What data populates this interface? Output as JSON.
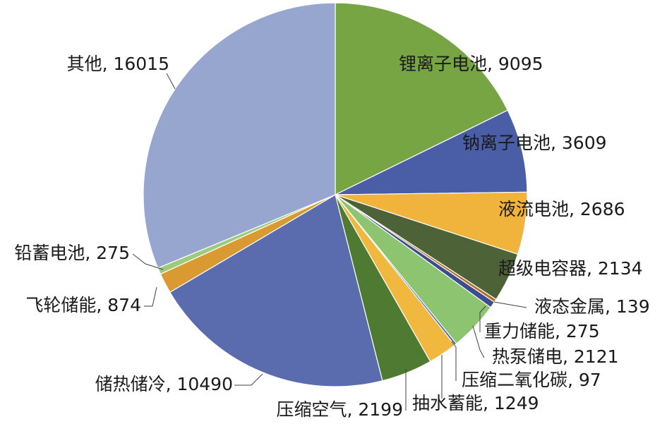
{
  "chart_data": {
    "type": "pie",
    "title": "",
    "slices": [
      {
        "label": "锂离子电池",
        "value": 9095,
        "color": "#77a544",
        "text": "锂离子电池, 9095"
      },
      {
        "label": "钠离子电池",
        "value": 3609,
        "color": "#4a5ea7",
        "text": "钠离子电池, 3609"
      },
      {
        "label": "液流电池",
        "value": 2686,
        "color": "#f0b33c",
        "text": "液流电池, 2686"
      },
      {
        "label": "超级电容器",
        "value": 2134,
        "color": "#4d6236",
        "text": "超级电容器, 2134"
      },
      {
        "label": "液态金属",
        "value": 139,
        "color": "#b36d29",
        "text": "液态金属, 139"
      },
      {
        "label": "重力储能",
        "value": 275,
        "color": "#3b4f8c",
        "text": "重力储能, 275"
      },
      {
        "label": "热泵储电",
        "value": 2121,
        "color": "#8cc46f",
        "text": "热泵储电, 2121"
      },
      {
        "label": "压缩二氧化碳",
        "value": 97,
        "color": "#4a5ea7",
        "text": "压缩二氧化碳, 97"
      },
      {
        "label": "抽水蓄能",
        "value": 1249,
        "color": "#f1b840",
        "text": "抽水蓄能, 1249"
      },
      {
        "label": "压缩空气",
        "value": 2199,
        "color": "#4f7a32",
        "text": "压缩空气, 2199"
      },
      {
        "label": "储热储冷",
        "value": 10490,
        "color": "#5a6cad",
        "text": "储热储冷, 10490"
      },
      {
        "label": "飞轮储能",
        "value": 874,
        "color": "#d99a32",
        "text": "飞轮储能, 874"
      },
      {
        "label": "铅蓄电池",
        "value": 275,
        "color": "#9ccb7e",
        "text": "铅蓄电池, 275"
      },
      {
        "label": "其他",
        "value": 16015,
        "color": "#97a6cf",
        "text": "其他, 16015"
      }
    ],
    "legend": "none"
  }
}
